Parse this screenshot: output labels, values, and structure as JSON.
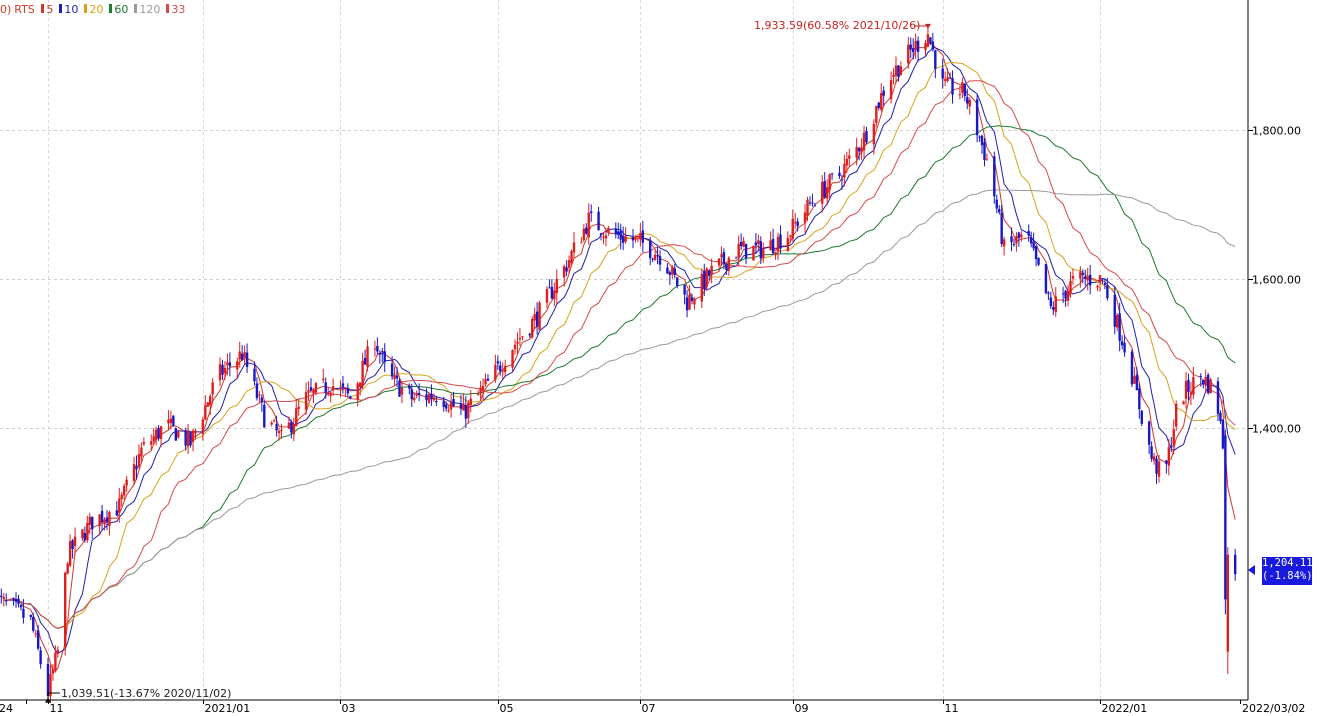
{
  "legend": {
    "prefix": "0)",
    "symbol": "RTS",
    "periods": [
      {
        "label": "5",
        "color": "#d4372b"
      },
      {
        "label": "10",
        "color": "#1f1fb0"
      },
      {
        "label": "20",
        "color": "#d9a21b"
      },
      {
        "label": "60",
        "color": "#1e7a2e"
      },
      {
        "label": "120",
        "color": "#9a9a9a"
      },
      {
        "label": "33",
        "color": "#d94a4a"
      }
    ]
  },
  "annotations": {
    "high": {
      "text": "1,933.59(60.58% 2021/10/26)",
      "value": 1933.59,
      "date": "2021/10/26"
    },
    "low": {
      "text": "1,039.51(-13.67% 2020/11/02)",
      "value": 1039.51,
      "date": "2020/11/02"
    }
  },
  "last_price": {
    "value_text": "1,204.11",
    "change_text": "(-1.84%)"
  },
  "chart_data": {
    "type": "candlestick",
    "y_ticks": [
      {
        "value": 1800,
        "label": "1,800.00"
      },
      {
        "value": 1600,
        "label": "1,600.00"
      },
      {
        "value": 1400,
        "label": "1,400.00"
      }
    ],
    "ylim": [
      1035,
      1975
    ],
    "x_ticks": [
      "'24",
      "11",
      "2021/01",
      "03",
      "05",
      "07",
      "09",
      "11",
      "2022/01",
      "2022/03/02"
    ],
    "x_tick_dates": [
      "2020/10/24",
      "2020/11/02",
      "2021/01/04",
      "2021/03/01",
      "2021/05/04",
      "2021/07/01",
      "2021/09/01",
      "2021/11/01",
      "2022/01/04",
      "2022/03/02"
    ],
    "grid": true,
    "up_color": "#e01e1e",
    "down_color": "#1818c8",
    "close_path": [
      [
        "2020/10/12",
        1170
      ],
      [
        "2020/10/20",
        1155
      ],
      [
        "2020/10/26",
        1140
      ],
      [
        "2020/11/02",
        1045
      ],
      [
        "2020/11/06",
        1100
      ],
      [
        "2020/11/10",
        1230
      ],
      [
        "2020/11/20",
        1275
      ],
      [
        "2020/12/01",
        1295
      ],
      [
        "2020/12/10",
        1370
      ],
      [
        "2020/12/20",
        1405
      ],
      [
        "2020/12/30",
        1380
      ],
      [
        "2021/01/10",
        1470
      ],
      [
        "2021/01/20",
        1500
      ],
      [
        "2021/01/29",
        1415
      ],
      [
        "2021/02/05",
        1385
      ],
      [
        "2021/02/15",
        1440
      ],
      [
        "2021/02/25",
        1460
      ],
      [
        "2021/03/05",
        1440
      ],
      [
        "2021/03/15",
        1520
      ],
      [
        "2021/03/20",
        1470
      ],
      [
        "2021/03/30",
        1440
      ],
      [
        "2021/04/10",
        1445
      ],
      [
        "2021/04/20",
        1420
      ],
      [
        "2021/04/30",
        1460
      ],
      [
        "2021/05/10",
        1510
      ],
      [
        "2021/05/20",
        1550
      ],
      [
        "2021/06/01",
        1620
      ],
      [
        "2021/06/10",
        1680
      ],
      [
        "2021/06/20",
        1660
      ],
      [
        "2021/07/01",
        1650
      ],
      [
        "2021/07/10",
        1630
      ],
      [
        "2021/07/20",
        1570
      ],
      [
        "2021/07/30",
        1610
      ],
      [
        "2021/08/10",
        1640
      ],
      [
        "2021/08/20",
        1640
      ],
      [
        "2021/08/30",
        1660
      ],
      [
        "2021/09/10",
        1710
      ],
      [
        "2021/09/20",
        1740
      ],
      [
        "2021/09/30",
        1790
      ],
      [
        "2021/10/10",
        1870
      ],
      [
        "2021/10/20",
        1910
      ],
      [
        "2021/10/26",
        1930
      ],
      [
        "2021/11/01",
        1860
      ],
      [
        "2021/11/10",
        1850
      ],
      [
        "2021/11/20",
        1750
      ],
      [
        "2021/11/26",
        1640
      ],
      [
        "2021/12/05",
        1660
      ],
      [
        "2021/12/15",
        1560
      ],
      [
        "2021/12/25",
        1600
      ],
      [
        "2022/01/05",
        1600
      ],
      [
        "2022/01/15",
        1500
      ],
      [
        "2022/01/25",
        1360
      ],
      [
        "2022/01/30",
        1330
      ],
      [
        "2022/02/05",
        1440
      ],
      [
        "2022/02/14",
        1470
      ],
      [
        "2022/02/20",
        1450
      ],
      [
        "2022/02/23",
        1380
      ],
      [
        "2022/02/24",
        1140
      ],
      [
        "2022/02/25",
        1210
      ],
      [
        "2022/02/28",
        1204
      ]
    ],
    "last_close": 1204.11,
    "series": [
      {
        "name": "5",
        "color": "#d4372b"
      },
      {
        "name": "10",
        "color": "#1f1fb0"
      },
      {
        "name": "20",
        "color": "#d9a21b"
      },
      {
        "name": "60",
        "color": "#1e7a2e"
      },
      {
        "name": "120",
        "color": "#9a9a9a"
      },
      {
        "name": "33",
        "color": "#d94a4a"
      }
    ]
  }
}
